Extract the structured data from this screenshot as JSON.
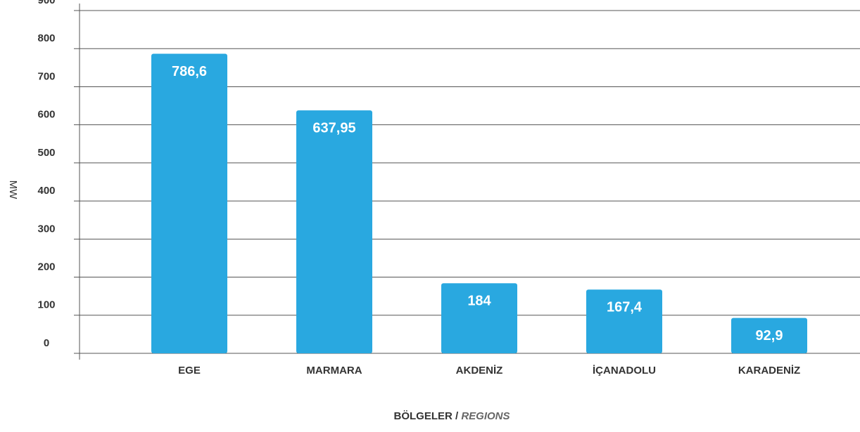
{
  "chart_data": {
    "type": "bar",
    "categories": [
      "EGE",
      "MARMARA",
      "AKDENİZ",
      "İÇANADOLU",
      "KARADENİZ"
    ],
    "values": [
      786.6,
      637.95,
      184,
      167.4,
      92.9
    ],
    "value_labels": [
      "786,6",
      "637,95",
      "184",
      "167,4",
      "92,9"
    ],
    "color": "#29a8e0",
    "ylabel": "MW",
    "xlabel_parts": [
      "BÖLGELER /",
      "REGIONS"
    ],
    "ylim": [
      0,
      900
    ],
    "yticks": [
      0,
      100,
      200,
      300,
      400,
      500,
      600,
      700,
      800,
      900
    ],
    "grid": true
  }
}
